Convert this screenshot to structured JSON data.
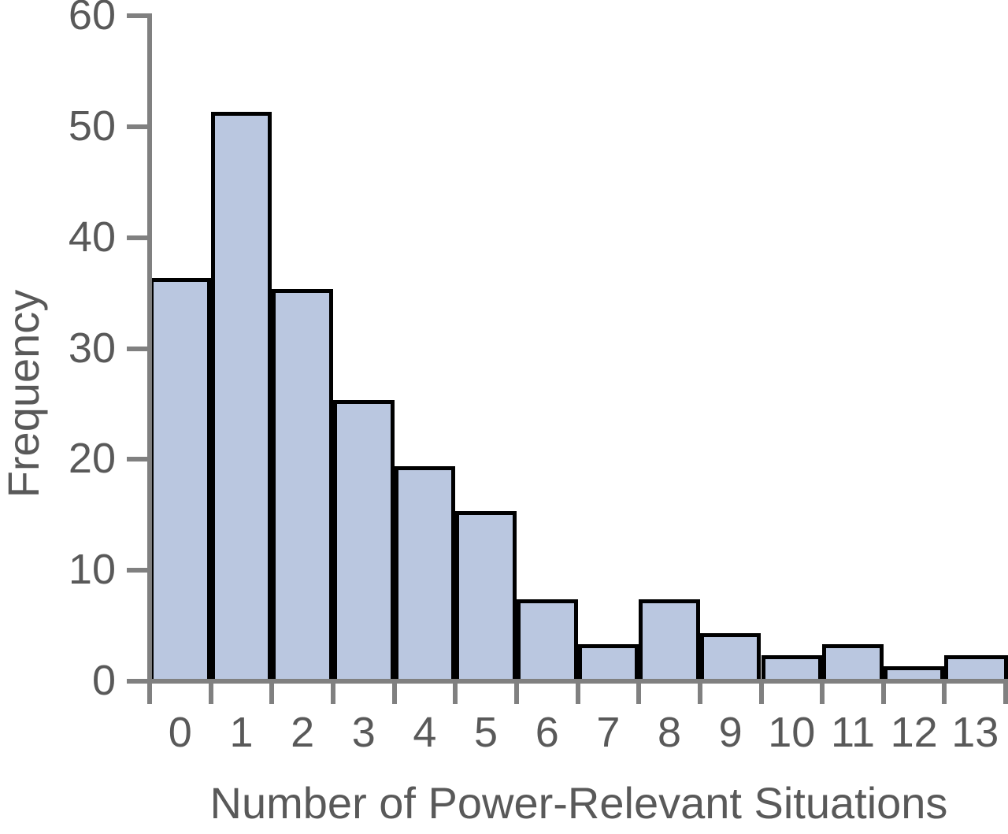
{
  "chart_data": {
    "type": "bar",
    "subtype": "histogram",
    "title": "",
    "xlabel": "Number of Power-Relevant Situations",
    "ylabel": "Frequency",
    "categories": [
      "0",
      "1",
      "2",
      "3",
      "4",
      "5",
      "6",
      "7",
      "8",
      "9",
      "10",
      "11",
      "12",
      "13"
    ],
    "values": [
      36,
      51,
      35,
      25,
      19,
      15,
      7,
      3,
      7,
      4,
      2,
      3,
      1,
      2
    ],
    "yticks": [
      0,
      10,
      20,
      30,
      40,
      50,
      60
    ],
    "ylim": [
      0,
      60
    ],
    "grid": false,
    "legend": null,
    "colors": {
      "bar_fill": "#bac7e0",
      "bar_border": "#000000",
      "axis": "#808080",
      "text": "#595959",
      "background": "#ffffff"
    }
  }
}
